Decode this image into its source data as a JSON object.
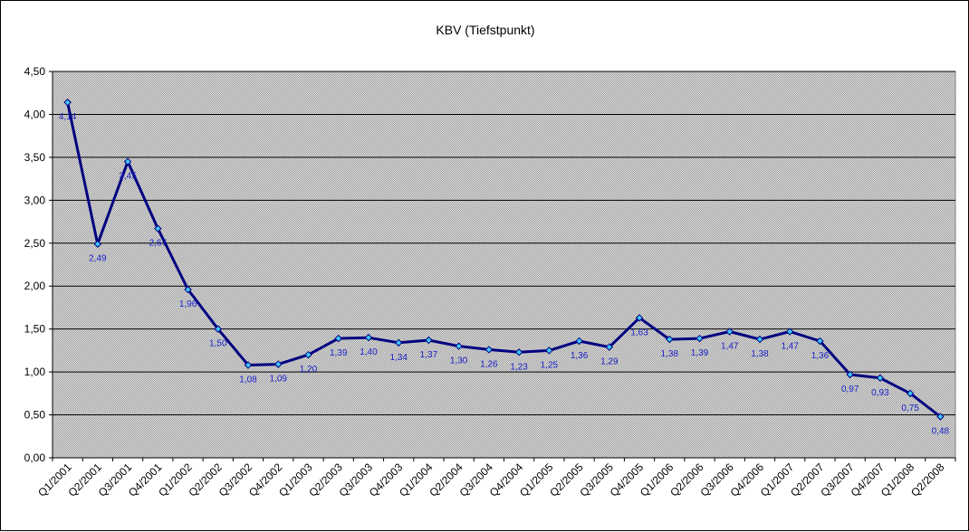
{
  "chart_data": {
    "type": "line",
    "title": "KBV (Tiefstpunkt)",
    "xlabel": "",
    "ylabel": "",
    "categories": [
      "Q1/2001",
      "Q2/2001",
      "Q3/2001",
      "Q4/2001",
      "Q1/2002",
      "Q2/2002",
      "Q3/2002",
      "Q4/2002",
      "Q1/2003",
      "Q2/2003",
      "Q3/2003",
      "Q4/2003",
      "Q1/2004",
      "Q2/2004",
      "Q3/2004",
      "Q4/2004",
      "Q1/2005",
      "Q2/2005",
      "Q3/2005",
      "Q4/2005",
      "Q1/2006",
      "Q2/2006",
      "Q3/2006",
      "Q4/2006",
      "Q1/2007",
      "Q2/2007",
      "Q3/2007",
      "Q4/2007",
      "Q1/2008",
      "Q2/2008"
    ],
    "series": [
      {
        "values": [
          4.14,
          2.49,
          3.45,
          2.67,
          1.96,
          1.5,
          1.08,
          1.09,
          1.2,
          1.39,
          1.4,
          1.34,
          1.37,
          1.3,
          1.26,
          1.23,
          1.25,
          1.36,
          1.29,
          1.63,
          1.38,
          1.39,
          1.47,
          1.38,
          1.47,
          1.36,
          0.97,
          0.93,
          0.75,
          0.48
        ],
        "labels": [
          "4,14",
          "2,49",
          "3,45",
          "2,67",
          "1,96",
          "1,50",
          "1,08",
          "1,09",
          "1,20",
          "1,39",
          "1,40",
          "1,34",
          "1,37",
          "1,30",
          "1,26",
          "1,23",
          "1,25",
          "1,36",
          "1,29",
          "1,63",
          "1,38",
          "1,39",
          "1,47",
          "1,38",
          "1,47",
          "1,36",
          "0,97",
          "0,93",
          "0,75",
          "0,48"
        ]
      }
    ],
    "ylim": [
      0,
      4.5
    ],
    "yticks": [
      0,
      0.5,
      1,
      1.5,
      2,
      2.5,
      3,
      3.5,
      4,
      4.5
    ],
    "ytick_labels": [
      "0,00",
      "0,50",
      "1,00",
      "1,50",
      "2,00",
      "2,50",
      "3,00",
      "3,50",
      "4,00",
      "4,50"
    ],
    "grid": true,
    "legend": "none",
    "colors": {
      "line": "#000080",
      "marker_fill": "#40c8ff",
      "data_label": "#1a22c8",
      "plot_background": "#c0c0c0",
      "gridline": "#000000"
    }
  }
}
